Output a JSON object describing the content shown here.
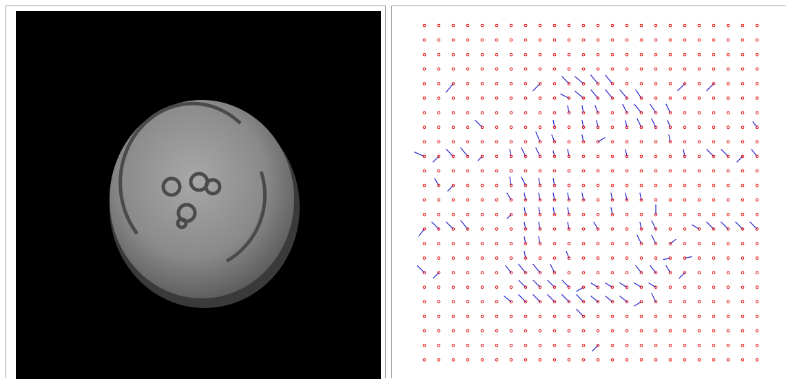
{
  "chart_data": {
    "type": "quiver",
    "columns": 24,
    "rows": 24,
    "point_color": "#e00000",
    "vector_color": "#2020d0",
    "vectors": [
      {
        "col": 2,
        "row": 4,
        "u": -0.5,
        "v": 0.6
      },
      {
        "col": 8,
        "row": 4,
        "u": -0.5,
        "v": 0.5
      },
      {
        "col": 10,
        "row": 4,
        "u": -0.5,
        "v": -0.5
      },
      {
        "col": 11,
        "row": 4,
        "u": -0.6,
        "v": -0.5
      },
      {
        "col": 12,
        "row": 4,
        "u": -0.5,
        "v": -0.6
      },
      {
        "col": 13,
        "row": 4,
        "u": -0.5,
        "v": -0.6
      },
      {
        "col": 18,
        "row": 4,
        "u": -0.5,
        "v": 0.5
      },
      {
        "col": 20,
        "row": 4,
        "u": -0.5,
        "v": 0.5
      },
      {
        "col": 10,
        "row": 5,
        "u": -0.6,
        "v": -0.3
      },
      {
        "col": 11,
        "row": 5,
        "u": -0.6,
        "v": -0.5
      },
      {
        "col": 12,
        "row": 5,
        "u": -0.5,
        "v": -0.6
      },
      {
        "col": 13,
        "row": 5,
        "u": -0.5,
        "v": -0.6
      },
      {
        "col": 14,
        "row": 5,
        "u": -0.5,
        "v": -0.6
      },
      {
        "col": 15,
        "row": 5,
        "u": -0.4,
        "v": -0.6
      },
      {
        "col": 10,
        "row": 6,
        "u": -0.1,
        "v": -0.5
      },
      {
        "col": 11,
        "row": 6,
        "u": -0.1,
        "v": -0.5
      },
      {
        "col": 12,
        "row": 6,
        "u": -0.2,
        "v": -0.5
      },
      {
        "col": 14,
        "row": 6,
        "u": -0.3,
        "v": -0.6
      },
      {
        "col": 15,
        "row": 6,
        "u": -0.5,
        "v": -0.6
      },
      {
        "col": 16,
        "row": 6,
        "u": -0.4,
        "v": -0.6
      },
      {
        "col": 17,
        "row": 6,
        "u": -0.3,
        "v": -0.6
      },
      {
        "col": 4,
        "row": 7,
        "u": -0.5,
        "v": -0.5
      },
      {
        "col": 9,
        "row": 7,
        "u": -0.1,
        "v": -0.5
      },
      {
        "col": 11,
        "row": 7,
        "u": -0.1,
        "v": -0.5
      },
      {
        "col": 12,
        "row": 7,
        "u": -0.1,
        "v": -0.5
      },
      {
        "col": 14,
        "row": 7,
        "u": -0.1,
        "v": -0.5
      },
      {
        "col": 15,
        "row": 7,
        "u": -0.3,
        "v": -0.6
      },
      {
        "col": 16,
        "row": 7,
        "u": -0.3,
        "v": -0.6
      },
      {
        "col": 17,
        "row": 7,
        "u": -0.2,
        "v": -0.5
      },
      {
        "col": 23,
        "row": 7,
        "u": -0.3,
        "v": -0.4
      },
      {
        "col": 8,
        "row": 8,
        "u": -0.3,
        "v": -0.7
      },
      {
        "col": 9,
        "row": 8,
        "u": -0.2,
        "v": -0.5
      },
      {
        "col": 11,
        "row": 8,
        "u": -0.1,
        "v": -0.5
      },
      {
        "col": 12,
        "row": 8,
        "u": 0.5,
        "v": -0.3
      },
      {
        "col": 17,
        "row": 8,
        "u": -0.1,
        "v": -0.5
      },
      {
        "col": 0,
        "row": 9,
        "u": -0.7,
        "v": -0.3
      },
      {
        "col": 1,
        "row": 9,
        "u": -0.4,
        "v": 0.4
      },
      {
        "col": 2,
        "row": 9,
        "u": -0.5,
        "v": -0.5
      },
      {
        "col": 3,
        "row": 9,
        "u": -0.5,
        "v": -0.6
      },
      {
        "col": 4,
        "row": 9,
        "u": -0.3,
        "v": 0.3
      },
      {
        "col": 6,
        "row": 9,
        "u": -0.1,
        "v": -0.5
      },
      {
        "col": 7,
        "row": 9,
        "u": -0.3,
        "v": -0.6
      },
      {
        "col": 8,
        "row": 9,
        "u": -0.3,
        "v": -0.6
      },
      {
        "col": 9,
        "row": 9,
        "u": -0.1,
        "v": -0.4
      },
      {
        "col": 10,
        "row": 9,
        "u": -0.1,
        "v": -0.5
      },
      {
        "col": 14,
        "row": 9,
        "u": -0.1,
        "v": -0.5
      },
      {
        "col": 18,
        "row": 9,
        "u": -0.1,
        "v": -0.5
      },
      {
        "col": 20,
        "row": 9,
        "u": -0.5,
        "v": -0.5
      },
      {
        "col": 21,
        "row": 9,
        "u": -0.5,
        "v": -0.5
      },
      {
        "col": 22,
        "row": 9,
        "u": -0.4,
        "v": 0.4
      },
      {
        "col": 23,
        "row": 9,
        "u": -0.4,
        "v": -0.5
      },
      {
        "col": 1,
        "row": 11,
        "u": -0.3,
        "v": -0.5
      },
      {
        "col": 2,
        "row": 11,
        "u": -0.4,
        "v": 0.4
      },
      {
        "col": 6,
        "row": 11,
        "u": -0.1,
        "v": -0.6
      },
      {
        "col": 7,
        "row": 11,
        "u": -0.3,
        "v": -0.6
      },
      {
        "col": 8,
        "row": 11,
        "u": -0.1,
        "v": -0.5
      },
      {
        "col": 9,
        "row": 11,
        "u": -0.1,
        "v": -0.5
      },
      {
        "col": 6,
        "row": 12,
        "u": -0.3,
        "v": -0.5
      },
      {
        "col": 7,
        "row": 12,
        "u": -0.1,
        "v": -0.5
      },
      {
        "col": 8,
        "row": 12,
        "u": -0.1,
        "v": -0.5
      },
      {
        "col": 9,
        "row": 12,
        "u": -0.1,
        "v": -0.5
      },
      {
        "col": 10,
        "row": 12,
        "u": -0.1,
        "v": -0.5
      },
      {
        "col": 11,
        "row": 12,
        "u": -0.1,
        "v": -0.5
      },
      {
        "col": 13,
        "row": 12,
        "u": -0.1,
        "v": -0.5
      },
      {
        "col": 14,
        "row": 12,
        "u": -0.1,
        "v": -0.5
      },
      {
        "col": 15,
        "row": 12,
        "u": -0.1,
        "v": -0.5
      },
      {
        "col": 6,
        "row": 13,
        "u": -0.3,
        "v": 0.3
      },
      {
        "col": 7,
        "row": 13,
        "u": -0.1,
        "v": -0.5
      },
      {
        "col": 8,
        "row": 13,
        "u": -0.1,
        "v": -0.5
      },
      {
        "col": 9,
        "row": 13,
        "u": -0.1,
        "v": -0.5
      },
      {
        "col": 10,
        "row": 13,
        "u": -0.1,
        "v": -0.5
      },
      {
        "col": 13,
        "row": 13,
        "u": -0.1,
        "v": -0.5
      },
      {
        "col": 16,
        "row": 13,
        "u": 0,
        "v": -0.7
      },
      {
        "col": 0,
        "row": 14,
        "u": -0.4,
        "v": 0.5
      },
      {
        "col": 1,
        "row": 14,
        "u": -0.5,
        "v": -0.5
      },
      {
        "col": 2,
        "row": 14,
        "u": -0.5,
        "v": -0.5
      },
      {
        "col": 3,
        "row": 14,
        "u": -0.5,
        "v": -0.6
      },
      {
        "col": 7,
        "row": 14,
        "u": -0.1,
        "v": -0.5
      },
      {
        "col": 8,
        "row": 14,
        "u": -0.1,
        "v": -0.5
      },
      {
        "col": 10,
        "row": 14,
        "u": -0.1,
        "v": -0.5
      },
      {
        "col": 12,
        "row": 14,
        "u": -0.3,
        "v": -0.5
      },
      {
        "col": 15,
        "row": 14,
        "u": -0.1,
        "v": -0.5
      },
      {
        "col": 16,
        "row": 14,
        "u": -0.3,
        "v": -0.6
      },
      {
        "col": 19,
        "row": 14,
        "u": -0.5,
        "v": -0.3
      },
      {
        "col": 20,
        "row": 14,
        "u": -0.5,
        "v": -0.5
      },
      {
        "col": 21,
        "row": 14,
        "u": -0.5,
        "v": -0.5
      },
      {
        "col": 22,
        "row": 14,
        "u": -0.5,
        "v": -0.5
      },
      {
        "col": 23,
        "row": 14,
        "u": -0.5,
        "v": -0.5
      },
      {
        "col": 7,
        "row": 15,
        "u": -0.1,
        "v": -0.5
      },
      {
        "col": 8,
        "row": 15,
        "u": -0.1,
        "v": -0.5
      },
      {
        "col": 15,
        "row": 15,
        "u": -0.3,
        "v": -0.6
      },
      {
        "col": 16,
        "row": 15,
        "u": -0.3,
        "v": -0.6
      },
      {
        "col": 17,
        "row": 15,
        "u": 0.4,
        "v": -0.3
      },
      {
        "col": 7,
        "row": 16,
        "u": -0.1,
        "v": -0.5
      },
      {
        "col": 10,
        "row": 16,
        "u": -0.2,
        "v": -0.5
      },
      {
        "col": 17,
        "row": 16,
        "u": -0.5,
        "v": 0.1
      },
      {
        "col": 18,
        "row": 16,
        "u": 0.5,
        "v": -0.1
      },
      {
        "col": 0,
        "row": 17,
        "u": -0.5,
        "v": -0.5
      },
      {
        "col": 1,
        "row": 17,
        "u": -0.4,
        "v": 0.4
      },
      {
        "col": 6,
        "row": 17,
        "u": -0.4,
        "v": -0.5
      },
      {
        "col": 7,
        "row": 17,
        "u": -0.5,
        "v": -0.6
      },
      {
        "col": 8,
        "row": 17,
        "u": -0.5,
        "v": -0.6
      },
      {
        "col": 9,
        "row": 17,
        "u": -0.3,
        "v": -0.6
      },
      {
        "col": 15,
        "row": 17,
        "u": -0.4,
        "v": -0.5
      },
      {
        "col": 16,
        "row": 17,
        "u": -0.4,
        "v": -0.5
      },
      {
        "col": 17,
        "row": 17,
        "u": -0.3,
        "v": -0.5
      },
      {
        "col": 18,
        "row": 17,
        "u": -0.4,
        "v": 0.4
      },
      {
        "col": 7,
        "row": 18,
        "u": -0.5,
        "v": -0.5
      },
      {
        "col": 8,
        "row": 18,
        "u": -0.5,
        "v": -0.5
      },
      {
        "col": 9,
        "row": 18,
        "u": -0.5,
        "v": -0.5
      },
      {
        "col": 10,
        "row": 18,
        "u": -0.5,
        "v": -0.5
      },
      {
        "col": 11,
        "row": 18,
        "u": -0.5,
        "v": 0.3
      },
      {
        "col": 12,
        "row": 18,
        "u": -0.5,
        "v": -0.3
      },
      {
        "col": 13,
        "row": 18,
        "u": -0.5,
        "v": -0.3
      },
      {
        "col": 14,
        "row": 18,
        "u": -0.5,
        "v": -0.3
      },
      {
        "col": 15,
        "row": 18,
        "u": -0.5,
        "v": -0.3
      },
      {
        "col": 16,
        "row": 18,
        "u": -0.5,
        "v": -0.3
      },
      {
        "col": 6,
        "row": 19,
        "u": -0.5,
        "v": -0.4
      },
      {
        "col": 7,
        "row": 19,
        "u": -0.5,
        "v": -0.5
      },
      {
        "col": 8,
        "row": 19,
        "u": -0.5,
        "v": -0.5
      },
      {
        "col": 9,
        "row": 19,
        "u": -0.5,
        "v": -0.5
      },
      {
        "col": 10,
        "row": 19,
        "u": -0.5,
        "v": -0.5
      },
      {
        "col": 11,
        "row": 19,
        "u": -0.5,
        "v": -0.5
      },
      {
        "col": 12,
        "row": 19,
        "u": -0.5,
        "v": -0.4
      },
      {
        "col": 13,
        "row": 19,
        "u": -0.5,
        "v": -0.4
      },
      {
        "col": 14,
        "row": 19,
        "u": -0.5,
        "v": -0.4
      },
      {
        "col": 15,
        "row": 19,
        "u": -0.5,
        "v": 0.3
      },
      {
        "col": 16,
        "row": 19,
        "u": -0.3,
        "v": -0.6
      },
      {
        "col": 11,
        "row": 20,
        "u": -0.5,
        "v": -0.5
      },
      {
        "col": 12,
        "row": 22,
        "u": -0.4,
        "v": 0.4
      }
    ]
  }
}
